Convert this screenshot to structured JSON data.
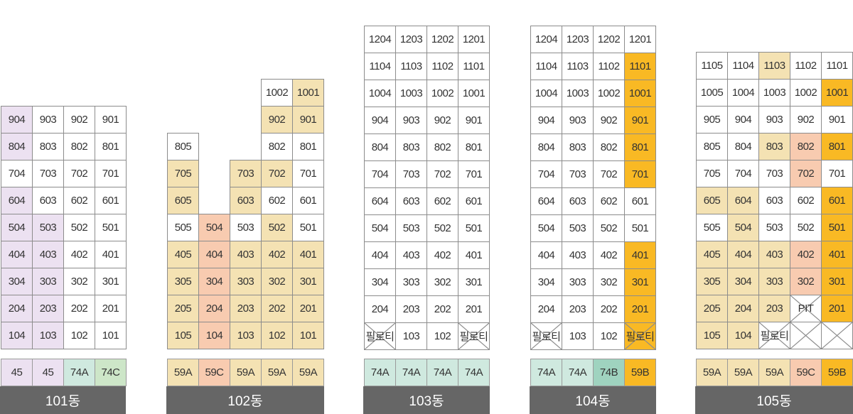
{
  "colors": {
    "white": "#ffffff",
    "purple": "#ece1f1",
    "beige": "#f4e2b3",
    "salmon": "#f8cbb0",
    "mint": "#cfe9df",
    "green": "#cde6c8",
    "teal": "#9fd3bf",
    "orange": "#f9b924",
    "label_bg": "#666666"
  },
  "buildings": [
    {
      "name": "101동",
      "rows": [
        [
          {
            "t": "904",
            "c": "purple"
          },
          {
            "t": "903"
          },
          {
            "t": "902"
          },
          {
            "t": "901"
          }
        ],
        [
          {
            "t": "804",
            "c": "purple"
          },
          {
            "t": "803"
          },
          {
            "t": "802"
          },
          {
            "t": "801"
          }
        ],
        [
          {
            "t": "704"
          },
          {
            "t": "703"
          },
          {
            "t": "702"
          },
          {
            "t": "701"
          }
        ],
        [
          {
            "t": "604",
            "c": "purple"
          },
          {
            "t": "603"
          },
          {
            "t": "602"
          },
          {
            "t": "601"
          }
        ],
        [
          {
            "t": "504",
            "c": "purple"
          },
          {
            "t": "503",
            "c": "purple"
          },
          {
            "t": "502"
          },
          {
            "t": "501"
          }
        ],
        [
          {
            "t": "404",
            "c": "purple"
          },
          {
            "t": "403",
            "c": "purple"
          },
          {
            "t": "402"
          },
          {
            "t": "401"
          }
        ],
        [
          {
            "t": "304",
            "c": "purple"
          },
          {
            "t": "303",
            "c": "purple"
          },
          {
            "t": "302"
          },
          {
            "t": "301"
          }
        ],
        [
          {
            "t": "204",
            "c": "purple"
          },
          {
            "t": "203",
            "c": "purple"
          },
          {
            "t": "202"
          },
          {
            "t": "201"
          }
        ],
        [
          {
            "t": "104",
            "c": "purple"
          },
          {
            "t": "103",
            "c": "purple"
          },
          {
            "t": "102"
          },
          {
            "t": "101"
          }
        ]
      ],
      "types": [
        {
          "t": "45",
          "c": "purple"
        },
        {
          "t": "45",
          "c": "purple"
        },
        {
          "t": "74A",
          "c": "mint"
        },
        {
          "t": "74C",
          "c": "green"
        }
      ]
    },
    {
      "name": "102동",
      "rows": [
        [
          null,
          null,
          null,
          {
            "t": "1002"
          },
          {
            "t": "1001",
            "c": "beige"
          }
        ],
        [
          null,
          null,
          null,
          {
            "t": "902",
            "c": "beige"
          },
          {
            "t": "901",
            "c": "beige"
          }
        ],
        [
          {
            "t": "805"
          },
          null,
          null,
          {
            "t": "802"
          },
          {
            "t": "801"
          }
        ],
        [
          {
            "t": "705",
            "c": "beige"
          },
          null,
          {
            "t": "703",
            "c": "beige"
          },
          {
            "t": "702",
            "c": "beige"
          },
          {
            "t": "701"
          }
        ],
        [
          {
            "t": "605",
            "c": "beige"
          },
          null,
          {
            "t": "603",
            "c": "beige"
          },
          {
            "t": "602"
          },
          {
            "t": "601"
          }
        ],
        [
          {
            "t": "505"
          },
          {
            "t": "504",
            "c": "salmon"
          },
          {
            "t": "503"
          },
          {
            "t": "502",
            "c": "beige"
          },
          {
            "t": "501"
          }
        ],
        [
          {
            "t": "405",
            "c": "beige"
          },
          {
            "t": "404",
            "c": "salmon"
          },
          {
            "t": "403",
            "c": "beige"
          },
          {
            "t": "402",
            "c": "beige"
          },
          {
            "t": "401",
            "c": "beige"
          }
        ],
        [
          {
            "t": "305",
            "c": "beige"
          },
          {
            "t": "304",
            "c": "salmon"
          },
          {
            "t": "303",
            "c": "beige"
          },
          {
            "t": "302",
            "c": "beige"
          },
          {
            "t": "301",
            "c": "beige"
          }
        ],
        [
          {
            "t": "205",
            "c": "beige"
          },
          {
            "t": "204",
            "c": "salmon"
          },
          {
            "t": "203",
            "c": "beige"
          },
          {
            "t": "202",
            "c": "beige"
          },
          {
            "t": "201",
            "c": "beige"
          }
        ],
        [
          {
            "t": "105",
            "c": "beige"
          },
          {
            "t": "104",
            "c": "salmon"
          },
          {
            "t": "103",
            "c": "beige"
          },
          {
            "t": "102",
            "c": "beige"
          },
          {
            "t": "101",
            "c": "beige"
          }
        ]
      ],
      "types": [
        {
          "t": "59A",
          "c": "beige"
        },
        {
          "t": "59C",
          "c": "salmon"
        },
        {
          "t": "59A",
          "c": "beige"
        },
        {
          "t": "59A",
          "c": "beige"
        },
        {
          "t": "59A",
          "c": "beige"
        }
      ]
    },
    {
      "name": "103동",
      "rows": [
        [
          {
            "t": "1204"
          },
          {
            "t": "1203"
          },
          {
            "t": "1202"
          },
          {
            "t": "1201"
          }
        ],
        [
          {
            "t": "1104"
          },
          {
            "t": "1103"
          },
          {
            "t": "1102"
          },
          {
            "t": "1101"
          }
        ],
        [
          {
            "t": "1004"
          },
          {
            "t": "1003"
          },
          {
            "t": "1002"
          },
          {
            "t": "1001"
          }
        ],
        [
          {
            "t": "904"
          },
          {
            "t": "903"
          },
          {
            "t": "902"
          },
          {
            "t": "901"
          }
        ],
        [
          {
            "t": "804"
          },
          {
            "t": "803"
          },
          {
            "t": "802"
          },
          {
            "t": "801"
          }
        ],
        [
          {
            "t": "704"
          },
          {
            "t": "703"
          },
          {
            "t": "702"
          },
          {
            "t": "701"
          }
        ],
        [
          {
            "t": "604"
          },
          {
            "t": "603"
          },
          {
            "t": "602"
          },
          {
            "t": "601"
          }
        ],
        [
          {
            "t": "504"
          },
          {
            "t": "503"
          },
          {
            "t": "502"
          },
          {
            "t": "501"
          }
        ],
        [
          {
            "t": "404"
          },
          {
            "t": "403"
          },
          {
            "t": "402"
          },
          {
            "t": "401"
          }
        ],
        [
          {
            "t": "304"
          },
          {
            "t": "303"
          },
          {
            "t": "302"
          },
          {
            "t": "301"
          }
        ],
        [
          {
            "t": "204"
          },
          {
            "t": "203"
          },
          {
            "t": "202"
          },
          {
            "t": "201"
          }
        ],
        [
          {
            "t": "필로티",
            "x": true
          },
          {
            "t": "103"
          },
          {
            "t": "102"
          },
          {
            "t": "필로티",
            "x": true
          }
        ]
      ],
      "types": [
        {
          "t": "74A",
          "c": "mint"
        },
        {
          "t": "74A",
          "c": "mint"
        },
        {
          "t": "74A",
          "c": "mint"
        },
        {
          "t": "74A",
          "c": "mint"
        }
      ]
    },
    {
      "name": "104동",
      "rows": [
        [
          {
            "t": "1204"
          },
          {
            "t": "1203"
          },
          {
            "t": "1202"
          },
          {
            "t": "1201"
          }
        ],
        [
          {
            "t": "1104"
          },
          {
            "t": "1103"
          },
          {
            "t": "1102"
          },
          {
            "t": "1101",
            "c": "orange"
          }
        ],
        [
          {
            "t": "1004"
          },
          {
            "t": "1003"
          },
          {
            "t": "1002"
          },
          {
            "t": "1001",
            "c": "orange"
          }
        ],
        [
          {
            "t": "904"
          },
          {
            "t": "903"
          },
          {
            "t": "902"
          },
          {
            "t": "901",
            "c": "orange"
          }
        ],
        [
          {
            "t": "804"
          },
          {
            "t": "803"
          },
          {
            "t": "802"
          },
          {
            "t": "801",
            "c": "orange"
          }
        ],
        [
          {
            "t": "704"
          },
          {
            "t": "703"
          },
          {
            "t": "702"
          },
          {
            "t": "701",
            "c": "orange"
          }
        ],
        [
          {
            "t": "604"
          },
          {
            "t": "603"
          },
          {
            "t": "602"
          },
          {
            "t": "601"
          }
        ],
        [
          {
            "t": "504"
          },
          {
            "t": "503"
          },
          {
            "t": "502"
          },
          {
            "t": "501"
          }
        ],
        [
          {
            "t": "404"
          },
          {
            "t": "403"
          },
          {
            "t": "402"
          },
          {
            "t": "401",
            "c": "orange"
          }
        ],
        [
          {
            "t": "304"
          },
          {
            "t": "303"
          },
          {
            "t": "302"
          },
          {
            "t": "301",
            "c": "orange"
          }
        ],
        [
          {
            "t": "204"
          },
          {
            "t": "203"
          },
          {
            "t": "202"
          },
          {
            "t": "201",
            "c": "orange"
          }
        ],
        [
          {
            "t": "필로티",
            "x": true
          },
          {
            "t": "103"
          },
          {
            "t": "102"
          },
          {
            "t": "필로티",
            "x": true,
            "c": "orange"
          }
        ]
      ],
      "types": [
        {
          "t": "74A",
          "c": "mint"
        },
        {
          "t": "74A",
          "c": "mint"
        },
        {
          "t": "74B",
          "c": "teal"
        },
        {
          "t": "59B",
          "c": "orange"
        }
      ]
    },
    {
      "name": "105동",
      "rows": [
        [
          {
            "t": "1105"
          },
          {
            "t": "1104"
          },
          {
            "t": "1103",
            "c": "beige"
          },
          {
            "t": "1102"
          },
          {
            "t": "1101"
          }
        ],
        [
          {
            "t": "1005"
          },
          {
            "t": "1004"
          },
          {
            "t": "1003"
          },
          {
            "t": "1002"
          },
          {
            "t": "1001",
            "c": "orange"
          }
        ],
        [
          {
            "t": "905"
          },
          {
            "t": "904"
          },
          {
            "t": "903"
          },
          {
            "t": "902"
          },
          {
            "t": "901"
          }
        ],
        [
          {
            "t": "805"
          },
          {
            "t": "804"
          },
          {
            "t": "803",
            "c": "beige"
          },
          {
            "t": "802",
            "c": "salmon"
          },
          {
            "t": "801",
            "c": "orange"
          }
        ],
        [
          {
            "t": "705"
          },
          {
            "t": "704"
          },
          {
            "t": "703"
          },
          {
            "t": "702",
            "c": "salmon"
          },
          {
            "t": "701"
          }
        ],
        [
          {
            "t": "605",
            "c": "beige"
          },
          {
            "t": "604",
            "c": "beige"
          },
          {
            "t": "603"
          },
          {
            "t": "602"
          },
          {
            "t": "601",
            "c": "orange"
          }
        ],
        [
          {
            "t": "505"
          },
          {
            "t": "504",
            "c": "beige"
          },
          {
            "t": "503"
          },
          {
            "t": "502"
          },
          {
            "t": "501",
            "c": "orange"
          }
        ],
        [
          {
            "t": "405",
            "c": "beige"
          },
          {
            "t": "404",
            "c": "beige"
          },
          {
            "t": "403",
            "c": "beige"
          },
          {
            "t": "402",
            "c": "salmon"
          },
          {
            "t": "401",
            "c": "orange"
          }
        ],
        [
          {
            "t": "305",
            "c": "beige"
          },
          {
            "t": "304",
            "c": "beige"
          },
          {
            "t": "303",
            "c": "beige"
          },
          {
            "t": "302",
            "c": "salmon"
          },
          {
            "t": "301",
            "c": "orange"
          }
        ],
        [
          {
            "t": "205",
            "c": "beige"
          },
          {
            "t": "204",
            "c": "beige"
          },
          {
            "t": "203",
            "c": "beige"
          },
          {
            "t": "PIT",
            "x": true
          },
          {
            "t": "201",
            "c": "orange"
          }
        ],
        [
          {
            "t": "105",
            "c": "beige"
          },
          {
            "t": "104",
            "c": "beige"
          },
          {
            "t": "필로티",
            "x": true
          },
          {
            "t": "",
            "x": true
          },
          {
            "t": "",
            "x": true
          }
        ]
      ],
      "types": [
        {
          "t": "59A",
          "c": "beige"
        },
        {
          "t": "59A",
          "c": "beige"
        },
        {
          "t": "59A",
          "c": "beige"
        },
        {
          "t": "59C",
          "c": "salmon"
        },
        {
          "t": "59B",
          "c": "orange"
        }
      ]
    }
  ]
}
